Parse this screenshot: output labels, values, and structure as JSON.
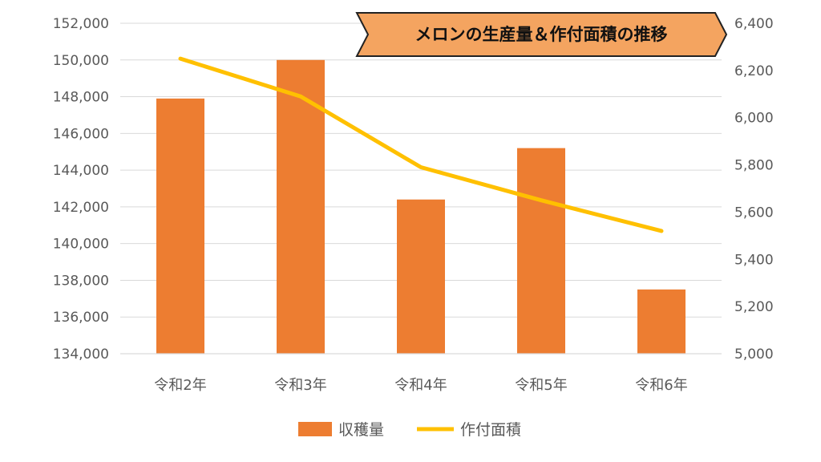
{
  "chart_data": {
    "type": "bar",
    "title": "メロンの生産量＆作付面積の推移",
    "categories": [
      "令和2年",
      "令和3年",
      "令和4年",
      "令和5年",
      "令和6年"
    ],
    "series": [
      {
        "name": "収穫量",
        "type": "bar",
        "axis": "left",
        "color": "#ED7D31",
        "values": [
          147900,
          150000,
          142400,
          145200,
          137500
        ]
      },
      {
        "name": "作付面積",
        "type": "line",
        "axis": "right",
        "color": "#FFC000",
        "values": [
          6250,
          6090,
          5790,
          5650,
          5520
        ]
      }
    ],
    "y_left": {
      "min": 134000,
      "max": 152000,
      "ticks": [
        "134,000",
        "136,000",
        "138,000",
        "140,000",
        "142,000",
        "144,000",
        "146,000",
        "148,000",
        "150,000",
        "152,000"
      ]
    },
    "y_right": {
      "min": 5000,
      "max": 6400,
      "ticks": [
        "5,000",
        "5,200",
        "5,400",
        "5,600",
        "5,800",
        "6,000",
        "6,200",
        "6,400"
      ]
    },
    "grid": true,
    "legend_position": "bottom",
    "title_banner_color": "#F4A460"
  }
}
